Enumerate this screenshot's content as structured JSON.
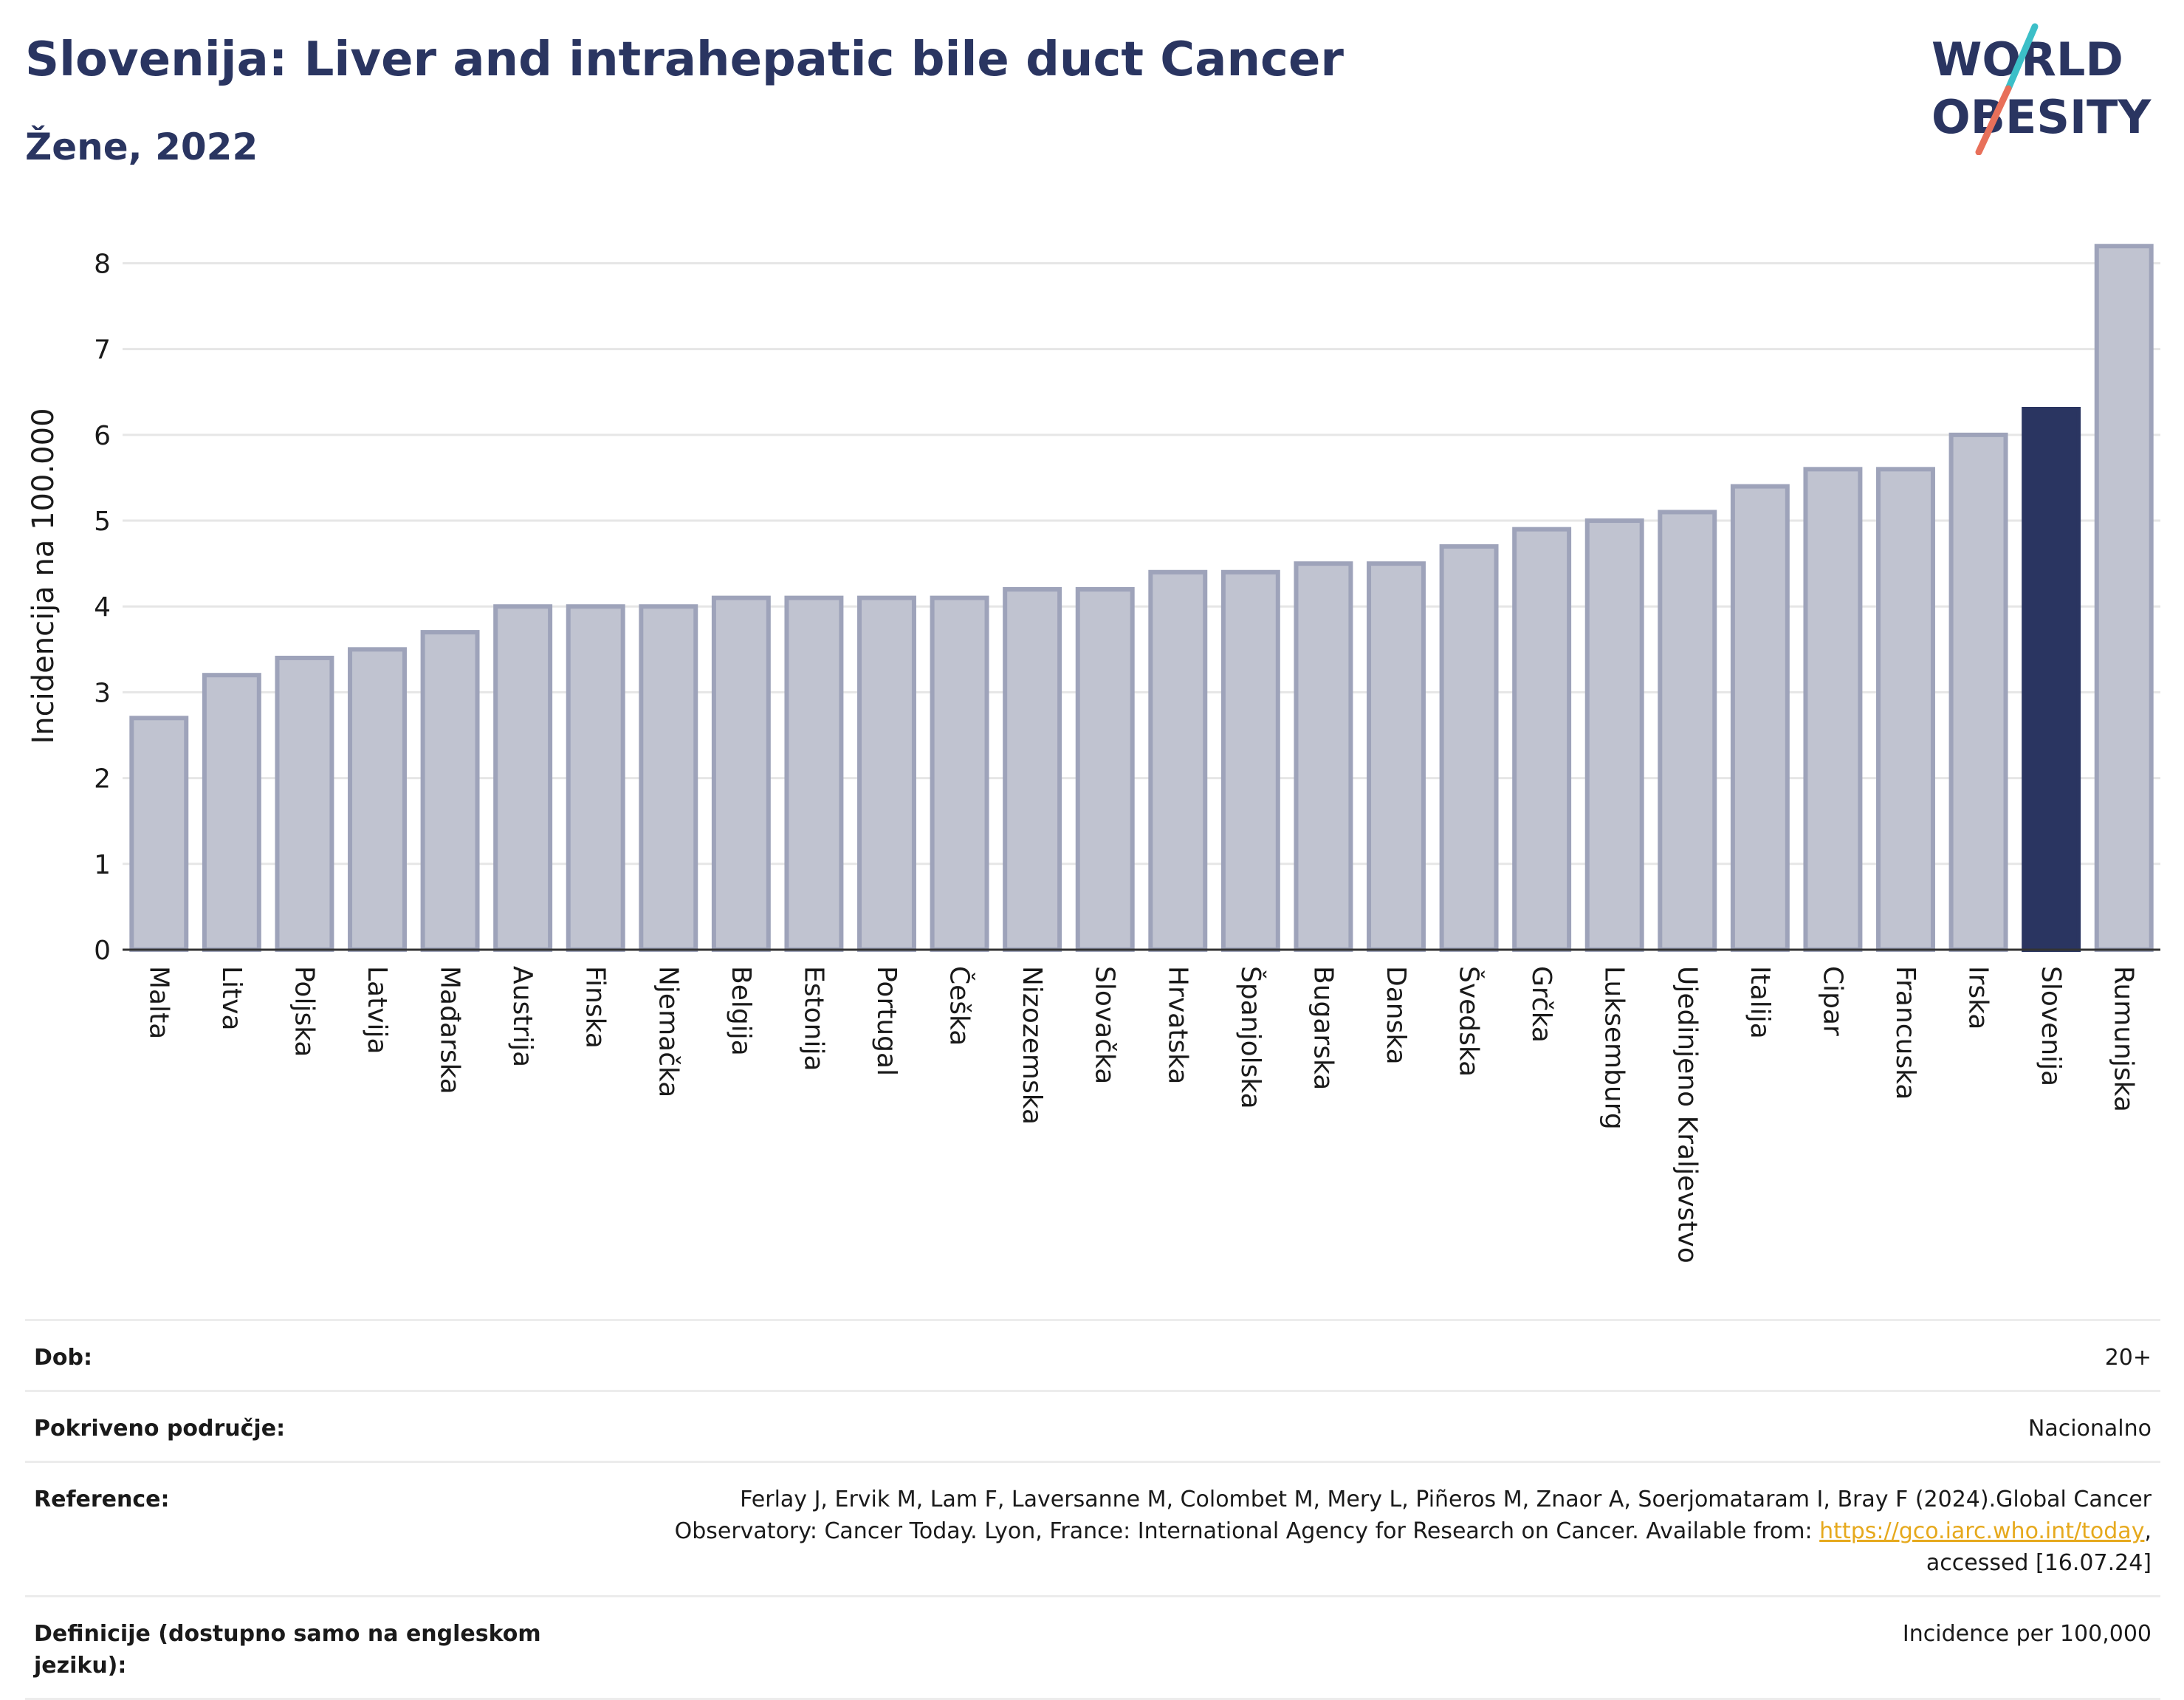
{
  "header": {
    "title": "Slovenija: Liver and intrahepatic bile duct Cancer",
    "subtitle": "Žene, 2022"
  },
  "logo": {
    "line1": "WORLD",
    "line2": "OBESITY",
    "colors": {
      "text": "#2a3561",
      "slash_top": "#3cbfc8",
      "slash_bottom": "#e8705a"
    }
  },
  "chart_data": {
    "type": "bar",
    "ylabel": "Incidencija na 100.000",
    "ylim": [
      0,
      8.4
    ],
    "yticks": [
      0,
      1,
      2,
      3,
      4,
      5,
      6,
      7,
      8
    ],
    "grid": true,
    "categories": [
      "Malta",
      "Litva",
      "Poljska",
      "Latvija",
      "Mađarska",
      "Austrija",
      "Finska",
      "Njemačka",
      "Belgija",
      "Estonija",
      "Portugal",
      "Češka",
      "Nizozemska",
      "Slovačka",
      "Hrvatska",
      "Španjolska",
      "Bugarska",
      "Danska",
      "Švedska",
      "Grčka",
      "Luksemburg",
      "Ujedinjeno Kraljevstvo",
      "Italija",
      "Cipar",
      "Francuska",
      "Irska",
      "Slovenija",
      "Rumunjska"
    ],
    "values": [
      2.7,
      3.2,
      3.4,
      3.5,
      3.7,
      4.0,
      4.0,
      4.0,
      4.1,
      4.1,
      4.1,
      4.1,
      4.2,
      4.2,
      4.4,
      4.4,
      4.5,
      4.5,
      4.7,
      4.9,
      5.0,
      5.1,
      5.4,
      5.6,
      5.6,
      6.0,
      6.3,
      8.2
    ],
    "highlight": "Slovenija",
    "colors": {
      "bar": "#c0c3d0",
      "bar_edge": "#9ea3ba",
      "highlight": "#2a3561",
      "grid": "#e6e6e6",
      "axis": "#333333"
    }
  },
  "meta": {
    "rows": [
      {
        "label": "Dob:",
        "value": "20+"
      },
      {
        "label": "Pokriveno područje:",
        "value": "Nacionalno"
      },
      {
        "label": "Reference:",
        "value_line1": "Ferlay J, Ervik M, Lam F, Laversanne M, Colombet M, Mery L, Piñeros M, Znaor A, Soerjomataram I, Bray F (2024).Global Cancer",
        "value_line2_pre": "Observatory: Cancer Today. Lyon, France: International Agency for Research on Cancer. Available from: ",
        "link": "https://gco.iarc.who.int/today",
        "value_line2_post": ",",
        "value_line3": "accessed [16.07.24]"
      },
      {
        "label": "Definicije (dostupno samo na engleskom jeziku):",
        "value": "Incidence per 100,000"
      }
    ]
  }
}
